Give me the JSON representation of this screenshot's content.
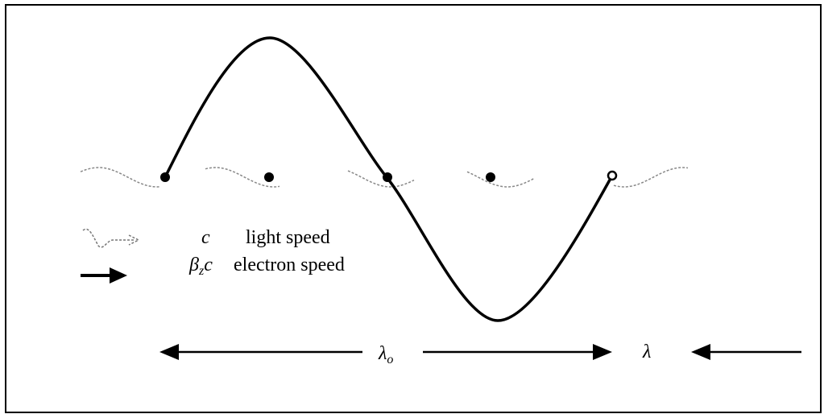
{
  "legend": [
    {
      "symbol": "c",
      "label": "light speed"
    },
    {
      "symbol": {
        "base": "β",
        "sub": "z",
        "tail": "c"
      },
      "label": "electron speed"
    }
  ],
  "labels": {
    "undulator_period": {
      "base": "λ",
      "sub": "o"
    },
    "wavelength": "λ"
  }
}
